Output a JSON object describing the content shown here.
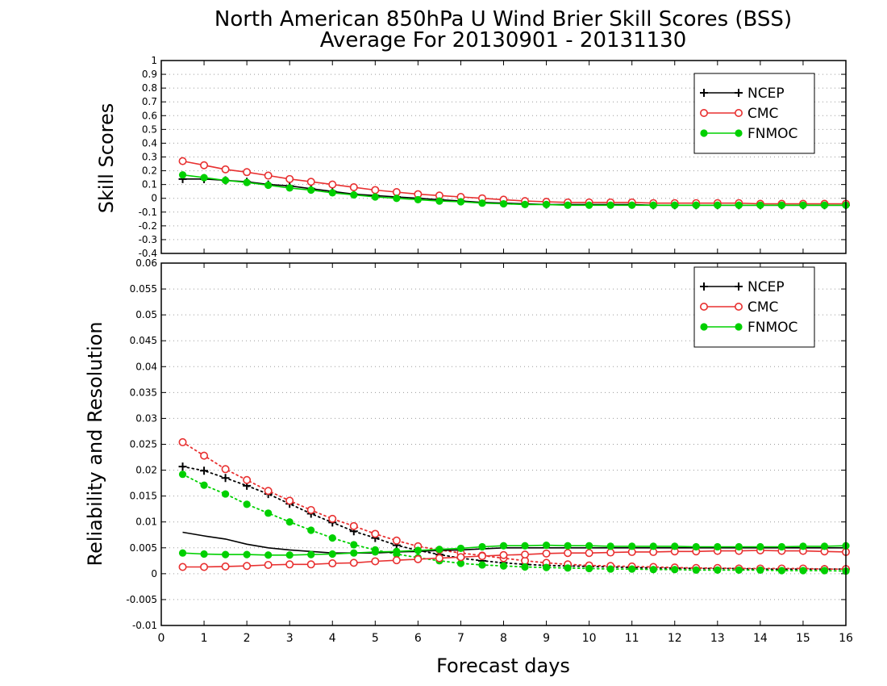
{
  "title_line1": "North American 850hPa U Wind Brier Skill Scores (BSS)",
  "title_line2": "Average For 20130901 - 20131130",
  "colors": {
    "NCEP": "#000000",
    "CMC": "#e83030",
    "FNMOC": "#00d000",
    "grid": "#9a9a9a"
  },
  "chart_data": [
    {
      "type": "line",
      "title": "North American 850hPa U Wind Brier Skill Scores (BSS)",
      "subtitle": "Average For 20130901 - 20131130",
      "xlabel": "",
      "ylabel": "Skill Scores",
      "xlim": [
        0,
        16
      ],
      "ylim": [
        -0.4,
        1
      ],
      "yticks": [
        -0.4,
        -0.3,
        -0.2,
        -0.1,
        0,
        0.1,
        0.2,
        0.3,
        0.4,
        0.5,
        0.6,
        0.7,
        0.8,
        0.9,
        1
      ],
      "ytick_labels": [
        "-0.4",
        "-0.3",
        "-0.2",
        "-0.1",
        "0",
        "0.1",
        "0.2",
        "0.3",
        "0.4",
        "0.5",
        "0.6",
        "0.7",
        "0.8",
        "0.9",
        "1"
      ],
      "grid": true,
      "legend": "top-right",
      "x": [
        0.5,
        1,
        1.5,
        2,
        2.5,
        3,
        3.5,
        4,
        4.5,
        5,
        5.5,
        6,
        6.5,
        7,
        7.5,
        8,
        8.5,
        9,
        9.5,
        10,
        10.5,
        11,
        11.5,
        12,
        12.5,
        13,
        13.5,
        14,
        14.5,
        15,
        15.5,
        16
      ],
      "series": [
        {
          "name": "NCEP",
          "style": "solid",
          "marker": "plus",
          "values": [
            0.14,
            0.14,
            0.13,
            0.12,
            0.1,
            0.09,
            0.07,
            0.05,
            0.03,
            0.02,
            0.01,
            0.0,
            -0.01,
            -0.02,
            -0.03,
            -0.035,
            -0.04,
            -0.045,
            -0.045,
            -0.045,
            -0.045,
            -0.045,
            -0.05,
            -0.05,
            -0.05,
            -0.05,
            -0.05,
            -0.05,
            -0.05,
            -0.05,
            -0.05,
            -0.05
          ]
        },
        {
          "name": "CMC",
          "style": "solid",
          "marker": "open-circle",
          "values": [
            0.27,
            0.24,
            0.21,
            0.19,
            0.165,
            0.14,
            0.12,
            0.1,
            0.08,
            0.06,
            0.045,
            0.03,
            0.02,
            0.01,
            0.0,
            -0.01,
            -0.02,
            -0.025,
            -0.03,
            -0.03,
            -0.03,
            -0.03,
            -0.035,
            -0.035,
            -0.035,
            -0.035,
            -0.035,
            -0.04,
            -0.04,
            -0.04,
            -0.04,
            -0.04
          ]
        },
        {
          "name": "FNMOC",
          "style": "solid",
          "marker": "filled-circle",
          "values": [
            0.17,
            0.15,
            0.13,
            0.115,
            0.095,
            0.075,
            0.06,
            0.04,
            0.025,
            0.01,
            0.0,
            -0.01,
            -0.02,
            -0.025,
            -0.035,
            -0.04,
            -0.045,
            -0.045,
            -0.05,
            -0.05,
            -0.05,
            -0.05,
            -0.05,
            -0.05,
            -0.05,
            -0.05,
            -0.05,
            -0.05,
            -0.05,
            -0.05,
            -0.05,
            -0.05
          ]
        }
      ]
    },
    {
      "type": "line",
      "title": "",
      "xlabel": "Forecast days",
      "ylabel": "Reliability and Resolution",
      "xlim": [
        0,
        16
      ],
      "ylim": [
        -0.01,
        0.06
      ],
      "yticks": [
        -0.01,
        -0.005,
        0,
        0.005,
        0.01,
        0.015,
        0.02,
        0.025,
        0.03,
        0.035,
        0.04,
        0.045,
        0.05,
        0.055,
        0.06
      ],
      "ytick_labels": [
        "-0.01",
        "-0.005",
        "0",
        "0.005",
        "0.01",
        "0.015",
        "0.02",
        "0.025",
        "0.03",
        "0.035",
        "0.04",
        "0.045",
        "0.05",
        "0.055",
        "0.06"
      ],
      "xticks": [
        0,
        1,
        2,
        3,
        4,
        5,
        6,
        7,
        8,
        9,
        10,
        11,
        12,
        13,
        14,
        15,
        16
      ],
      "xtick_labels": [
        "0",
        "1",
        "2",
        "3",
        "4",
        "5",
        "6",
        "7",
        "8",
        "9",
        "10",
        "11",
        "12",
        "13",
        "14",
        "15",
        "16"
      ],
      "grid": true,
      "legend": "top-right",
      "x": [
        0.5,
        1,
        1.5,
        2,
        2.5,
        3,
        3.5,
        4,
        4.5,
        5,
        5.5,
        6,
        6.5,
        7,
        7.5,
        8,
        8.5,
        9,
        9.5,
        10,
        10.5,
        11,
        11.5,
        12,
        12.5,
        13,
        13.5,
        14,
        14.5,
        15,
        15.5,
        16
      ],
      "series": [
        {
          "name": "NCEP",
          "style": "dotted",
          "marker": "plus",
          "values": [
            0.0207,
            0.0199,
            0.0185,
            0.017,
            0.0154,
            0.0135,
            0.0116,
            0.0099,
            0.0082,
            0.0069,
            0.0055,
            0.0045,
            0.0037,
            0.003,
            0.0025,
            0.0021,
            0.0018,
            0.0016,
            0.0015,
            0.0014,
            0.0013,
            0.0012,
            0.0011,
            0.0011,
            0.001,
            0.001,
            0.001,
            0.0009,
            0.0009,
            0.0009,
            0.0009,
            0.0009
          ]
        },
        {
          "name": "CMC",
          "style": "dotted",
          "marker": "open-circle",
          "values": [
            0.0254,
            0.0228,
            0.0202,
            0.0181,
            0.016,
            0.0141,
            0.0123,
            0.0106,
            0.0092,
            0.0077,
            0.0064,
            0.0053,
            0.0046,
            0.004,
            0.0035,
            0.003,
            0.0025,
            0.0021,
            0.0018,
            0.0016,
            0.0015,
            0.0014,
            0.0013,
            0.0012,
            0.0011,
            0.0011,
            0.001,
            0.001,
            0.001,
            0.001,
            0.0009,
            0.0009
          ]
        },
        {
          "name": "FNMOC",
          "style": "dotted",
          "marker": "filled-circle",
          "values": [
            0.0192,
            0.0171,
            0.0154,
            0.0134,
            0.0117,
            0.01,
            0.0084,
            0.0069,
            0.0056,
            0.0046,
            0.0038,
            0.0031,
            0.0025,
            0.002,
            0.0017,
            0.0015,
            0.0013,
            0.0012,
            0.0011,
            0.001,
            0.0009,
            0.0009,
            0.0008,
            0.0008,
            0.0007,
            0.0007,
            0.0007,
            0.0007,
            0.0006,
            0.0006,
            0.0006,
            0.0005
          ]
        },
        {
          "name": "NCEP",
          "style": "solid",
          "marker": "none",
          "values": [
            0.008,
            0.0073,
            0.0067,
            0.0057,
            0.005,
            0.0046,
            0.0043,
            0.004,
            0.004,
            0.004,
            0.0042,
            0.0043,
            0.0045,
            0.0046,
            0.0048,
            0.005,
            0.005,
            0.005,
            0.005,
            0.005,
            0.005,
            0.005,
            0.005,
            0.005,
            0.005,
            0.005,
            0.005,
            0.005,
            0.005,
            0.005,
            0.005,
            0.005
          ]
        },
        {
          "name": "CMC",
          "style": "solid",
          "marker": "open-circle",
          "values": [
            0.0013,
            0.0013,
            0.0014,
            0.0015,
            0.0017,
            0.0018,
            0.0018,
            0.002,
            0.0021,
            0.0024,
            0.0026,
            0.0028,
            0.003,
            0.0032,
            0.0034,
            0.0036,
            0.0037,
            0.0039,
            0.004,
            0.004,
            0.0041,
            0.0042,
            0.0042,
            0.0043,
            0.0043,
            0.0044,
            0.0044,
            0.0045,
            0.0044,
            0.0044,
            0.0043,
            0.0042
          ]
        },
        {
          "name": "FNMOC",
          "style": "solid",
          "marker": "filled-circle",
          "values": [
            0.004,
            0.0038,
            0.0037,
            0.0037,
            0.0036,
            0.0036,
            0.0037,
            0.0038,
            0.004,
            0.0042,
            0.0043,
            0.0045,
            0.0047,
            0.0049,
            0.0052,
            0.0054,
            0.0054,
            0.0055,
            0.0054,
            0.0054,
            0.0053,
            0.0053,
            0.0053,
            0.0053,
            0.0052,
            0.0052,
            0.0052,
            0.0052,
            0.0052,
            0.0053,
            0.0053,
            0.0054
          ]
        }
      ]
    }
  ]
}
